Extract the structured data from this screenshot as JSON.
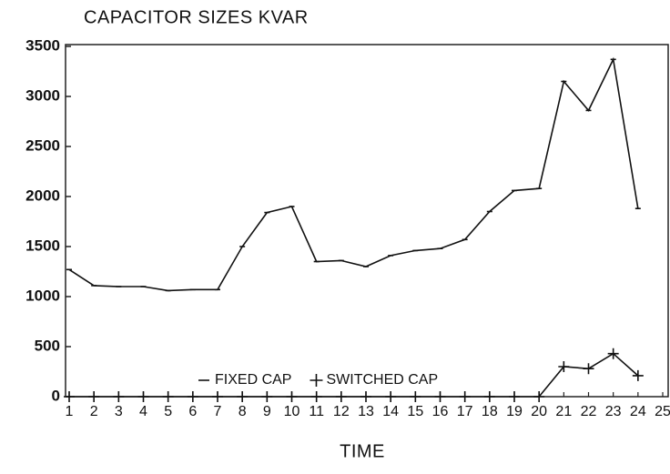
{
  "chart_data": {
    "type": "line",
    "title": "CAPACITOR SIZES KVAR",
    "x_label": "TIME",
    "x": [
      1,
      2,
      3,
      4,
      5,
      6,
      7,
      8,
      9,
      10,
      11,
      12,
      13,
      14,
      15,
      16,
      17,
      18,
      19,
      20,
      21,
      22,
      23,
      24
    ],
    "series": [
      {
        "name": "FIXED CAP",
        "color": "#111111",
        "marker": "dash",
        "values": [
          1270,
          1110,
          1100,
          1100,
          1060,
          1070,
          1070,
          1500,
          1840,
          1900,
          1350,
          1360,
          1300,
          1410,
          1460,
          1480,
          1570,
          1850,
          2060,
          2080,
          3150,
          2860,
          3370,
          1880
        ]
      },
      {
        "name": "SWITCHED CAP",
        "color": "#111111",
        "marker": "plus",
        "values": [
          0,
          0,
          0,
          0,
          0,
          0,
          0,
          0,
          0,
          0,
          0,
          0,
          0,
          0,
          0,
          0,
          0,
          0,
          0,
          0,
          300,
          280,
          430,
          210
        ]
      }
    ],
    "xlim": [
      1,
      25
    ],
    "xticks": [
      1,
      2,
      3,
      4,
      5,
      6,
      7,
      8,
      9,
      10,
      11,
      12,
      13,
      14,
      15,
      16,
      17,
      18,
      19,
      20,
      21,
      22,
      23,
      24,
      25
    ],
    "ylim": [
      0,
      3500
    ],
    "yticks": [
      0,
      500,
      1000,
      1500,
      2000,
      2500,
      3000,
      3500
    ],
    "grid": false
  }
}
